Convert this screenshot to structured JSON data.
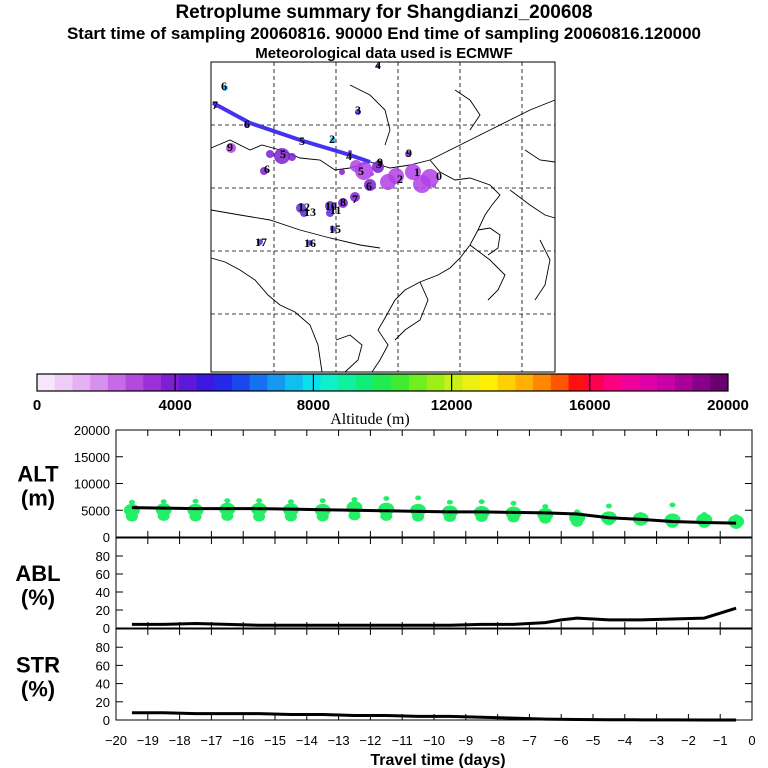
{
  "header": {
    "title": "Retroplume summary for Shangdianzi_200608",
    "sampling": "Start time of sampling 20060816. 90000     End time of sampling 20060816.120000",
    "met": "Meteorological data used is ECMWF"
  },
  "map": {
    "point_labels": [
      "0",
      "1",
      "2",
      "3",
      "4",
      "5",
      "6",
      "7",
      "8",
      "9",
      "10",
      "11",
      "12",
      "13",
      "14",
      "15",
      "16",
      "17"
    ],
    "point_colors": {
      "purple": "#b040e8",
      "dark_purple": "#7a1fd0",
      "blue_purple": "#5a2ad8",
      "cyan": "#30b0f0",
      "trajectory": "#4433ee"
    }
  },
  "colorbar": {
    "title": "Altitude (m)",
    "tick_labels": [
      "0",
      "4000",
      "8000",
      "12000",
      "16000",
      "20000"
    ],
    "colors": [
      "#f6e6fb",
      "#efcdf7",
      "#e4b1f3",
      "#d690ee",
      "#c76ae8",
      "#b449e0",
      "#9b2fd8",
      "#7e1fd4",
      "#5d18d8",
      "#3d18e0",
      "#2528e8",
      "#1a48ee",
      "#1670f0",
      "#1598f0",
      "#10bff0",
      "#08e0ee",
      "#10f0c8",
      "#10f0a0",
      "#10ee78",
      "#20ec50",
      "#40ec30",
      "#70ee20",
      "#a0ee18",
      "#c8f018",
      "#ecf012",
      "#fff000",
      "#ffd000",
      "#ffb000",
      "#ff8800",
      "#ff5500",
      "#ff1010",
      "#ff0050",
      "#ff0080",
      "#f0009a",
      "#e000a8",
      "#c800a8",
      "#a80098",
      "#880088",
      "#6a0070"
    ]
  },
  "chart_data": [
    {
      "type": "scatter",
      "panel": "ALT",
      "ylabel_line1": "ALT",
      "ylabel_line2": "(m)",
      "ylim": [
        0,
        20000
      ],
      "yticks": [
        "0",
        "5000",
        "10000",
        "15000",
        "20000"
      ],
      "median_line": {
        "x": [
          -19.5,
          -18.5,
          -17.5,
          -16.5,
          -15.5,
          -14.5,
          -13.5,
          -12.5,
          -11.5,
          -10.5,
          -9.5,
          -8.5,
          -7.5,
          -6.5,
          -5.5,
          -4.5,
          -3.5,
          -2.5,
          -1.5,
          -0.5
        ],
        "y": [
          5500,
          5400,
          5300,
          5300,
          5300,
          5200,
          5100,
          5000,
          4900,
          4800,
          4700,
          4700,
          4600,
          4500,
          4300,
          3600,
          3300,
          2900,
          2700,
          2600
        ]
      },
      "point_color": "#22ee66",
      "points": [
        {
          "x": -19.5,
          "y": [
            3800,
            5000,
            6500
          ]
        },
        {
          "x": -18.5,
          "y": [
            3900,
            5100,
            6600
          ]
        },
        {
          "x": -17.5,
          "y": [
            3800,
            5000,
            6700
          ]
        },
        {
          "x": -16.5,
          "y": [
            3900,
            5200,
            6800
          ]
        },
        {
          "x": -15.5,
          "y": [
            3800,
            5200,
            6800
          ]
        },
        {
          "x": -14.5,
          "y": [
            3800,
            5100,
            6600
          ]
        },
        {
          "x": -13.5,
          "y": [
            3800,
            5000,
            6800
          ]
        },
        {
          "x": -12.5,
          "y": [
            4000,
            5500,
            7000
          ]
        },
        {
          "x": -11.5,
          "y": [
            3900,
            5200,
            7200
          ]
        },
        {
          "x": -10.5,
          "y": [
            3800,
            5000,
            7300
          ]
        },
        {
          "x": -9.5,
          "y": [
            3700,
            4700,
            6500
          ]
        },
        {
          "x": -8.5,
          "y": [
            3700,
            4600,
            6600
          ]
        },
        {
          "x": -7.5,
          "y": [
            3600,
            4500,
            6300
          ]
        },
        {
          "x": -6.5,
          "y": [
            3400,
            4200,
            5700
          ]
        },
        {
          "x": -5.5,
          "y": [
            2800,
            3600,
            4700
          ]
        },
        {
          "x": -4.5,
          "y": [
            3100,
            3600,
            5800
          ]
        },
        {
          "x": -3.5,
          "y": [
            3000,
            3400,
            4200
          ]
        },
        {
          "x": -2.5,
          "y": [
            2600,
            3200,
            6000
          ]
        },
        {
          "x": -1.5,
          "y": [
            2600,
            3200,
            4200
          ]
        },
        {
          "x": -0.5,
          "y": [
            2400,
            2900,
            3800
          ]
        }
      ]
    },
    {
      "type": "line",
      "panel": "ABL",
      "ylabel_line1": "ABL",
      "ylabel_line2": "(%)",
      "ylim": [
        0,
        100
      ],
      "yticks": [
        "0",
        "20",
        "40",
        "60",
        "80"
      ],
      "x": [
        -19.5,
        -18.5,
        -17.5,
        -16.5,
        -15.5,
        -14.5,
        -13.5,
        -12.5,
        -11.5,
        -10.5,
        -9.5,
        -8.5,
        -7.5,
        -6.5,
        -6.0,
        -5.5,
        -5.0,
        -4.5,
        -3.5,
        -2.5,
        -1.5,
        -0.5
      ],
      "y": [
        4,
        4,
        5,
        4,
        3,
        3,
        3,
        3,
        3,
        3,
        3,
        4,
        4,
        6,
        9,
        11,
        10,
        9,
        9,
        10,
        11,
        22
      ]
    },
    {
      "type": "line",
      "panel": "STR",
      "ylabel_line1": "STR",
      "ylabel_line2": "(%)",
      "ylim": [
        0,
        100
      ],
      "yticks": [
        "0",
        "20",
        "40",
        "60",
        "80"
      ],
      "x": [
        -19.5,
        -18.5,
        -17.5,
        -16.5,
        -15.5,
        -14.5,
        -13.5,
        -12.5,
        -11.5,
        -10.5,
        -9.5,
        -8.5,
        -7.5,
        -6.5,
        -5.5,
        -4.5,
        -3.5,
        -2.5,
        -1.5,
        -0.5
      ],
      "y": [
        8,
        8,
        7,
        7,
        7,
        6,
        6,
        5,
        5,
        4,
        4,
        3,
        2,
        1,
        0.5,
        0.3,
        0.2,
        0.1,
        0,
        0
      ]
    }
  ],
  "xaxis": {
    "title": "Travel time (days)",
    "tick_labels": [
      "-20",
      "-19",
      "-18",
      "-17",
      "-16",
      "-15",
      "-14",
      "-13",
      "-12",
      "-11",
      "-10",
      "-9",
      "-8",
      "-7",
      "-6",
      "-5",
      "-4",
      "-3",
      "-2",
      "-1",
      "0"
    ]
  }
}
